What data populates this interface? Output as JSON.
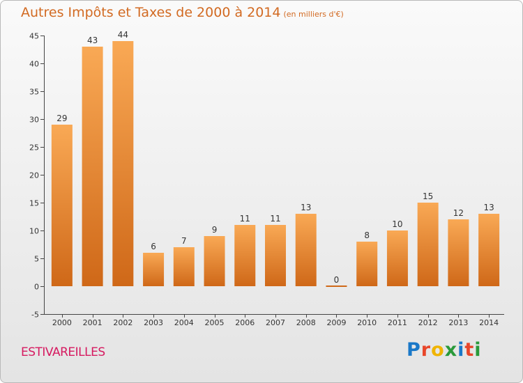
{
  "title": "Autres Impôts et Taxes de 2000 à 2014",
  "unit": "(en milliers d'€)",
  "town": "ESTIVAREILLES",
  "logo": {
    "chars": [
      "P",
      "r",
      "o",
      "x",
      "i",
      "t",
      "i"
    ],
    "colors": [
      "#1a78c8",
      "#e8462a",
      "#f0b400",
      "#2a9a3a",
      "#1a78c8",
      "#e8462a",
      "#2a9a3a"
    ]
  },
  "colors": {
    "bar_light": "#f9a955",
    "bar_dark": "#cf6818",
    "axis": "#444444",
    "title": "#d26a22",
    "town": "#d61a60"
  },
  "chart_data": {
    "type": "bar",
    "title": "Autres Impôts et Taxes de 2000 à 2014",
    "ylabel": "en milliers d'€",
    "xlabel": "",
    "categories": [
      "2000",
      "2001",
      "2002",
      "2003",
      "2004",
      "2005",
      "2006",
      "2007",
      "2008",
      "2009",
      "2010",
      "2011",
      "2012",
      "2013",
      "2014"
    ],
    "values": [
      29,
      43,
      44,
      6,
      7,
      9,
      11,
      11,
      13,
      0,
      8,
      10,
      15,
      12,
      13
    ],
    "ylim": [
      -5,
      45
    ],
    "yticks": [
      -5,
      0,
      5,
      10,
      15,
      20,
      25,
      30,
      35,
      40,
      45
    ],
    "grid": false
  }
}
